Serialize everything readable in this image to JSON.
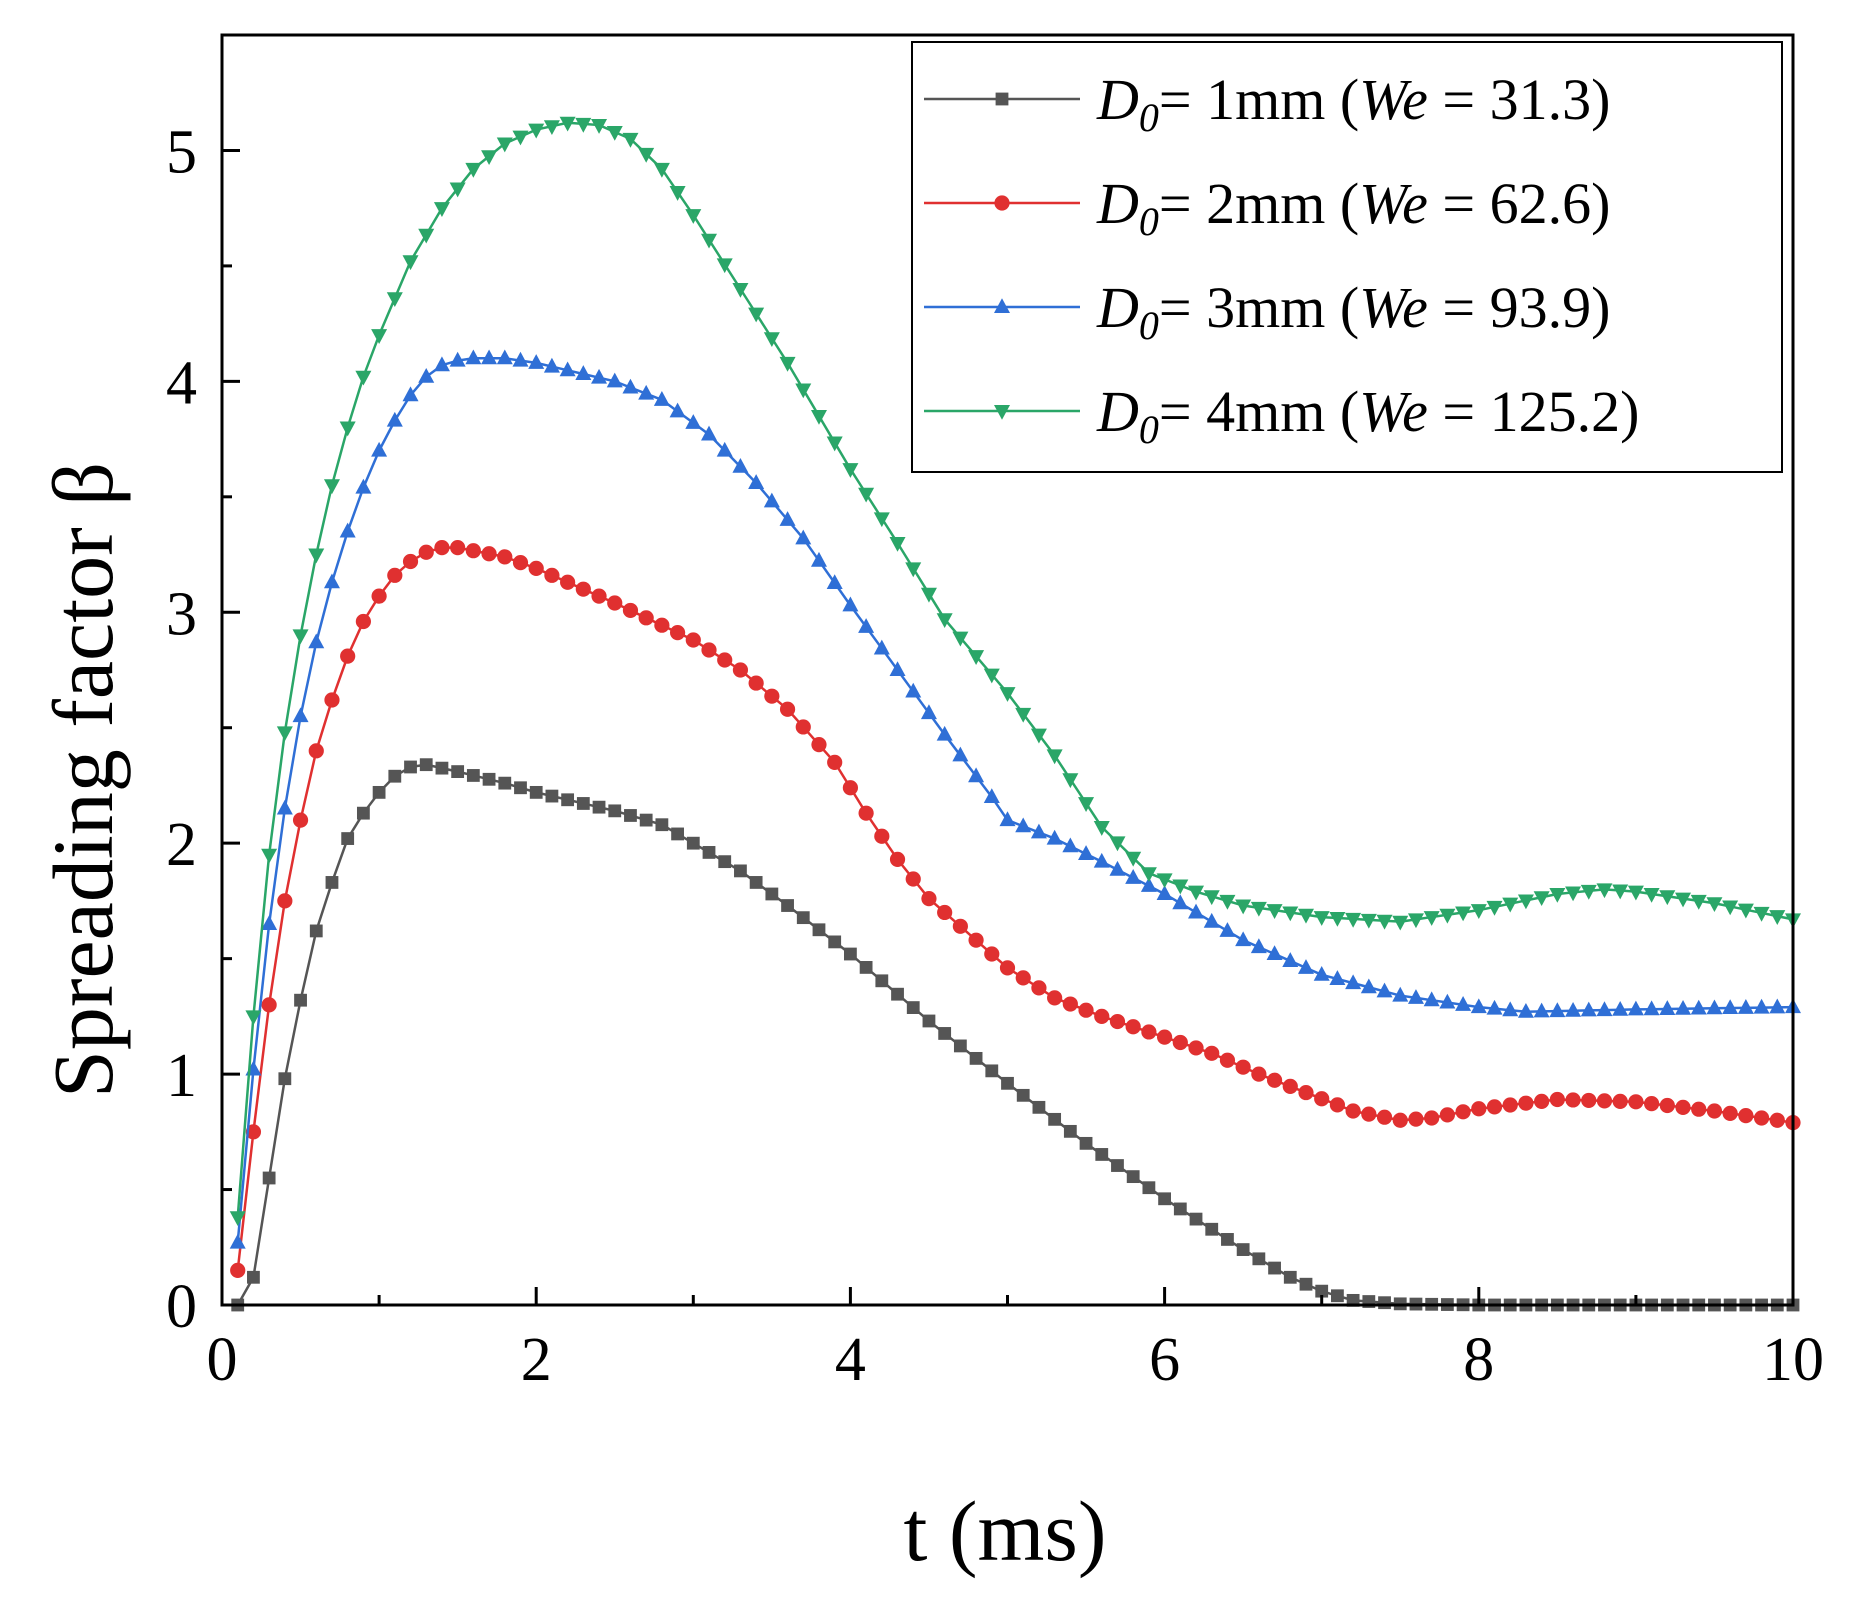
{
  "chart_data": {
    "type": "line",
    "xlabel": "t (ms)",
    "ylabel": "Spreading factor β",
    "xlim": [
      0,
      10
    ],
    "ylim": [
      0,
      5.5
    ],
    "xticks": [
      "0",
      "2",
      "4",
      "6",
      "8",
      "10"
    ],
    "yticks": [
      "0",
      "1",
      "2",
      "3",
      "4",
      "5"
    ],
    "legend_position": "top-right",
    "x_step": 0.1,
    "series": [
      {
        "name": "D0= 1mm (We = 31.3)",
        "legend": {
          "pre": "D",
          "sub": "0",
          "mid": "= 1mm (",
          "it": "We",
          "post": " = 31.3)"
        },
        "color": "#555555",
        "marker": "square",
        "key": [
          [
            0.1,
            0
          ],
          [
            0.2,
            0.12
          ],
          [
            0.3,
            0.55
          ],
          [
            0.4,
            0.98
          ],
          [
            0.5,
            1.32
          ],
          [
            0.6,
            1.62
          ],
          [
            0.7,
            1.83
          ],
          [
            0.8,
            2.02
          ],
          [
            0.9,
            2.13
          ],
          [
            1.0,
            2.22
          ],
          [
            1.1,
            2.29
          ],
          [
            1.2,
            2.33
          ],
          [
            1.3,
            2.34
          ],
          [
            1.5,
            2.31
          ],
          [
            1.8,
            2.26
          ],
          [
            2.0,
            2.22
          ],
          [
            2.5,
            2.14
          ],
          [
            2.8,
            2.08
          ],
          [
            3.0,
            2.0
          ],
          [
            3.3,
            1.88
          ],
          [
            3.6,
            1.73
          ],
          [
            4.0,
            1.52
          ],
          [
            4.5,
            1.23
          ],
          [
            5.0,
            0.96
          ],
          [
            5.5,
            0.7
          ],
          [
            6.0,
            0.46
          ],
          [
            6.5,
            0.24
          ],
          [
            6.8,
            0.12
          ],
          [
            7.0,
            0.06
          ],
          [
            7.2,
            0.02
          ],
          [
            7.5,
            0.005
          ],
          [
            8.0,
            0
          ],
          [
            10.0,
            0
          ]
        ]
      },
      {
        "name": "D0= 2mm (We = 62.6)",
        "legend": {
          "pre": "D",
          "sub": "0",
          "mid": "= 2mm (",
          "it": "We",
          "post": " = 62.6)"
        },
        "color": "#e03030",
        "marker": "circle",
        "key": [
          [
            0.1,
            0.15
          ],
          [
            0.2,
            0.75
          ],
          [
            0.3,
            1.3
          ],
          [
            0.4,
            1.75
          ],
          [
            0.5,
            2.1
          ],
          [
            0.6,
            2.4
          ],
          [
            0.7,
            2.62
          ],
          [
            0.8,
            2.81
          ],
          [
            0.9,
            2.96
          ],
          [
            1.0,
            3.07
          ],
          [
            1.1,
            3.16
          ],
          [
            1.2,
            3.22
          ],
          [
            1.3,
            3.26
          ],
          [
            1.4,
            3.28
          ],
          [
            1.5,
            3.28
          ],
          [
            1.8,
            3.24
          ],
          [
            2.0,
            3.19
          ],
          [
            2.5,
            3.04
          ],
          [
            3.0,
            2.88
          ],
          [
            3.3,
            2.75
          ],
          [
            3.6,
            2.58
          ],
          [
            3.9,
            2.35
          ],
          [
            4.1,
            2.13
          ],
          [
            4.3,
            1.93
          ],
          [
            4.5,
            1.76
          ],
          [
            4.8,
            1.58
          ],
          [
            5.0,
            1.46
          ],
          [
            5.3,
            1.33
          ],
          [
            5.6,
            1.25
          ],
          [
            6.0,
            1.16
          ],
          [
            6.3,
            1.09
          ],
          [
            6.6,
            1.0
          ],
          [
            6.9,
            0.92
          ],
          [
            7.2,
            0.84
          ],
          [
            7.5,
            0.8
          ],
          [
            7.7,
            0.81
          ],
          [
            8.0,
            0.85
          ],
          [
            8.5,
            0.89
          ],
          [
            9.0,
            0.88
          ],
          [
            9.5,
            0.84
          ],
          [
            10.0,
            0.79
          ]
        ]
      },
      {
        "name": "D0= 3mm (We = 93.9)",
        "legend": {
          "pre": "D",
          "sub": "0",
          "mid": "= 3mm (",
          "it": "We",
          "post": " = 93.9)"
        },
        "color": "#2f6fd6",
        "marker": "triangle-up",
        "key": [
          [
            0.1,
            0.27
          ],
          [
            0.2,
            1.02
          ],
          [
            0.3,
            1.65
          ],
          [
            0.4,
            2.15
          ],
          [
            0.5,
            2.55
          ],
          [
            0.6,
            2.87
          ],
          [
            0.7,
            3.13
          ],
          [
            0.8,
            3.35
          ],
          [
            0.9,
            3.54
          ],
          [
            1.0,
            3.7
          ],
          [
            1.1,
            3.83
          ],
          [
            1.2,
            3.94
          ],
          [
            1.3,
            4.02
          ],
          [
            1.4,
            4.07
          ],
          [
            1.5,
            4.09
          ],
          [
            1.6,
            4.1
          ],
          [
            1.8,
            4.1
          ],
          [
            2.0,
            4.08
          ],
          [
            2.5,
            4.0
          ],
          [
            2.8,
            3.92
          ],
          [
            3.1,
            3.77
          ],
          [
            3.4,
            3.56
          ],
          [
            3.7,
            3.32
          ],
          [
            4.0,
            3.03
          ],
          [
            4.3,
            2.75
          ],
          [
            4.6,
            2.47
          ],
          [
            4.9,
            2.2
          ],
          [
            5.0,
            2.1
          ],
          [
            5.3,
            2.02
          ],
          [
            5.6,
            1.92
          ],
          [
            6.0,
            1.78
          ],
          [
            6.5,
            1.58
          ],
          [
            7.0,
            1.43
          ],
          [
            7.5,
            1.34
          ],
          [
            8.0,
            1.29
          ],
          [
            8.3,
            1.27
          ],
          [
            9.0,
            1.28
          ],
          [
            10.0,
            1.29
          ]
        ]
      },
      {
        "name": "D0= 4mm (We = 125.2)",
        "legend": {
          "pre": "D",
          "sub": "0",
          "mid": "= 4mm (",
          "it": "We",
          "post": " = 125.2)"
        },
        "color": "#2aa668",
        "marker": "triangle-down",
        "key": [
          [
            0.1,
            0.38
          ],
          [
            0.2,
            1.25
          ],
          [
            0.3,
            1.95
          ],
          [
            0.4,
            2.48
          ],
          [
            0.5,
            2.9
          ],
          [
            0.6,
            3.25
          ],
          [
            0.7,
            3.55
          ],
          [
            0.8,
            3.8
          ],
          [
            0.9,
            4.02
          ],
          [
            1.0,
            4.2
          ],
          [
            1.2,
            4.52
          ],
          [
            1.4,
            4.75
          ],
          [
            1.6,
            4.92
          ],
          [
            1.8,
            5.03
          ],
          [
            2.0,
            5.09
          ],
          [
            2.2,
            5.12
          ],
          [
            2.4,
            5.11
          ],
          [
            2.6,
            5.05
          ],
          [
            2.8,
            4.92
          ],
          [
            3.0,
            4.72
          ],
          [
            3.3,
            4.4
          ],
          [
            3.6,
            4.08
          ],
          [
            4.0,
            3.62
          ],
          [
            4.3,
            3.3
          ],
          [
            4.6,
            2.97
          ],
          [
            5.0,
            2.65
          ],
          [
            5.3,
            2.38
          ],
          [
            5.6,
            2.07
          ],
          [
            5.9,
            1.87
          ],
          [
            6.2,
            1.79
          ],
          [
            6.5,
            1.73
          ],
          [
            7.0,
            1.68
          ],
          [
            7.5,
            1.66
          ],
          [
            8.0,
            1.71
          ],
          [
            8.5,
            1.78
          ],
          [
            8.8,
            1.8
          ],
          [
            9.0,
            1.79
          ],
          [
            9.5,
            1.74
          ],
          [
            10.0,
            1.67
          ]
        ]
      }
    ]
  }
}
